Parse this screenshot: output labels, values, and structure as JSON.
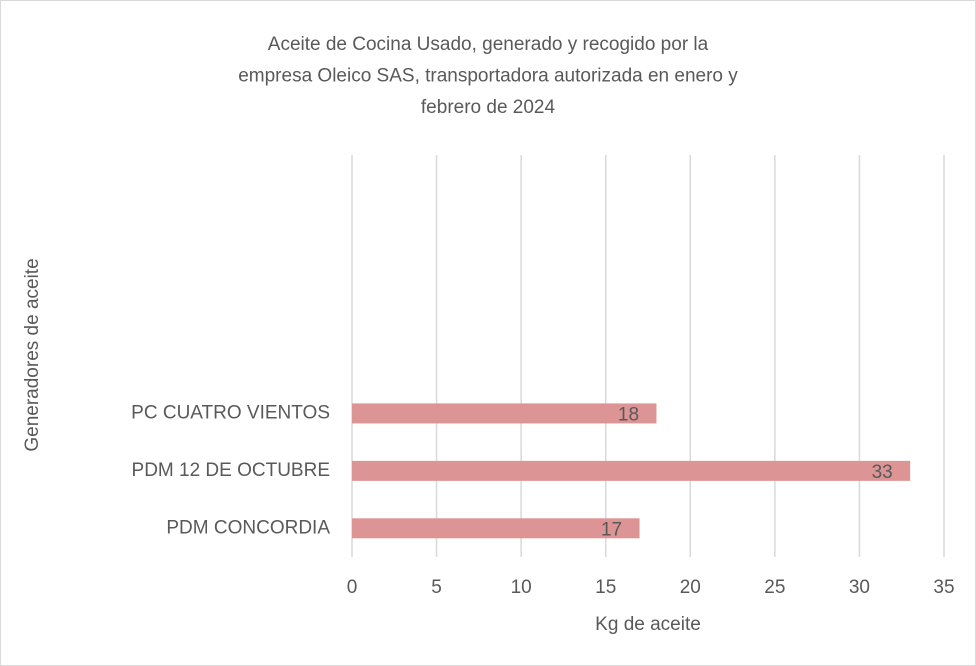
{
  "chart_data": {
    "type": "barh",
    "title": [
      "Aceite de Cocina Usado, generado y recogido por la",
      "empresa Oleico SAS, transportadora autorizada en enero y",
      "febrero de 2024"
    ],
    "xlabel": "Kg de aceite",
    "ylabel": "Generadores de aceite",
    "categories": [
      null,
      null,
      null,
      null,
      "PC CUATRO VIENTOS",
      "PDM 12 DE OCTUBRE",
      "PDM CONCORDIA"
    ],
    "values": [
      null,
      null,
      null,
      null,
      18,
      33,
      17
    ],
    "color": "#dc9494",
    "xlim": [
      0,
      35
    ],
    "xticks": [
      0,
      5,
      10,
      15,
      20,
      25,
      30,
      35
    ],
    "grid": true,
    "data_labels": true
  }
}
